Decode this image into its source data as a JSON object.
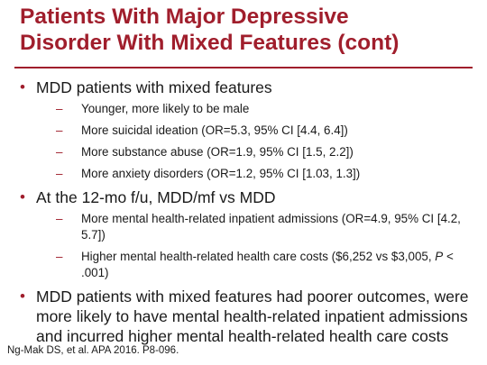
{
  "slide": {
    "title_line1": "Patients With Major Depressive",
    "title_line2": "Disorder With Mixed Features (cont)",
    "bullets": [
      {
        "text": "MDD patients with mixed features",
        "subitems": [
          "Younger, more likely to be male",
          "More suicidal ideation (OR=5.3, 95% CI [4.4, 6.4])",
          "More substance abuse (OR=1.9, 95% CI [1.5, 2.2])",
          "More anxiety disorders (OR=1.2, 95% CI [1.03, 1.3])"
        ]
      },
      {
        "text": "At the 12-mo f/u, MDD/mf vs MDD",
        "subitems": [
          "More mental health-related inpatient admissions (OR=4.9, 95% CI [4.2, 5.7])"
        ],
        "cost_item": {
          "before": "Higher mental health-related health care costs ($6,252 vs $3,005,",
          "p_letter": "P",
          "after": "< .001)"
        }
      },
      {
        "text": "MDD patients with mixed features had poorer outcomes, were more likely to have mental health-related inpatient admissions and incurred higher mental health-related health care costs"
      }
    ],
    "footer": "Ng-Mak DS, et al. APA 2016. P8-096."
  },
  "colors": {
    "accent": "#a01e2c",
    "text": "#1a1a1a",
    "background": "#ffffff"
  }
}
